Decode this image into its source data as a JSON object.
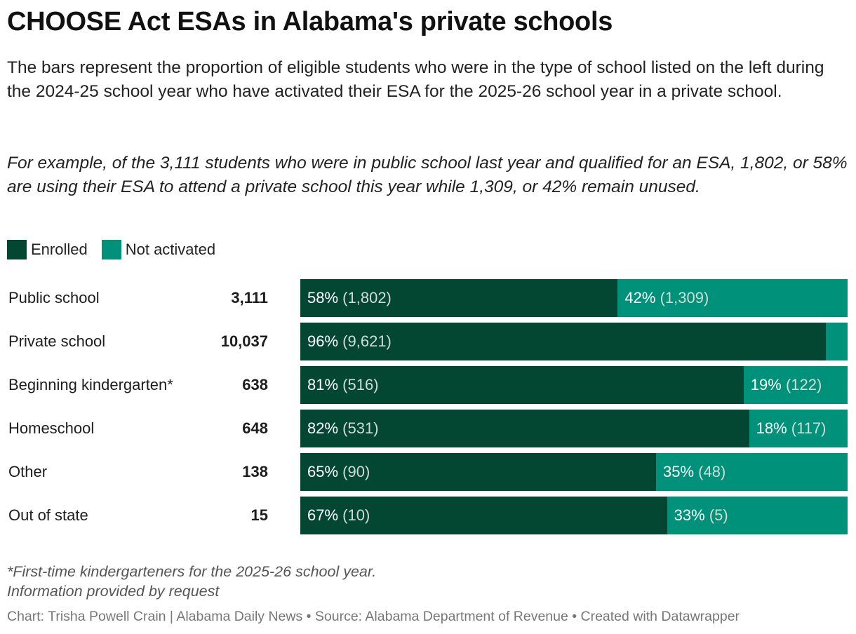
{
  "header": {
    "title": "CHOOSE Act ESAs in Alabama's private schools",
    "subtitle": "The bars represent the proportion of eligible students who were in the type of school listed on the left during the 2024-25 school year who have activated their ESA for the 2025-26 school year in a private school.",
    "example": "For example, of the 3,111 students who were in public school last year and qualified for an ESA, 1,802, or 58% are using their ESA to attend a private school this year while 1,309, or 42% remain unused."
  },
  "legend": {
    "enrolled": "Enrolled",
    "not_activated": "Not activated"
  },
  "colors": {
    "enrolled": "#034732",
    "not_activated": "#00917a"
  },
  "chart_data": {
    "type": "bar",
    "orientation": "horizontal",
    "stacked": true,
    "normalized": true,
    "categories": [
      "Public school",
      "Private school",
      "Beginning kindergarten*",
      "Homeschool",
      "Other",
      "Out of state"
    ],
    "totals": [
      "3,111",
      "10,037",
      "638",
      "648",
      "138",
      "15"
    ],
    "series": [
      {
        "name": "Enrolled",
        "values": [
          58,
          96,
          81,
          82,
          65,
          67
        ],
        "pct_labels": [
          "58%",
          "96%",
          "81%",
          "82%",
          "65%",
          "67%"
        ],
        "count_labels": [
          "(1,802)",
          "(9,621)",
          "(516)",
          "(531)",
          "(90)",
          "(10)"
        ]
      },
      {
        "name": "Not activated",
        "values": [
          42,
          4,
          19,
          18,
          35,
          33
        ],
        "pct_labels": [
          "42%",
          "",
          "19%",
          "18%",
          "35%",
          "33%"
        ],
        "count_labels": [
          "(1,309)",
          "",
          "(122)",
          "(117)",
          "(48)",
          "(5)"
        ]
      }
    ],
    "xlim": [
      0,
      100
    ]
  },
  "footer": {
    "note": "*First-time kindergarteners for the 2025-26 school year.",
    "info": "Information provided by request",
    "credit": "Chart: Trisha Powell Crain | Alabama Daily News • Source: Alabama Department of Revenue • Created with Datawrapper"
  }
}
